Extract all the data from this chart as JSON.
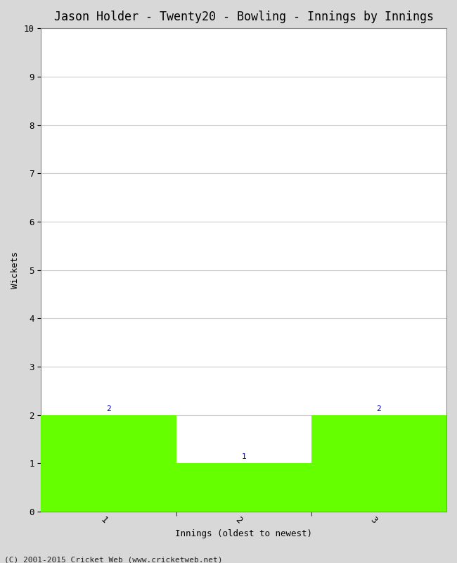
{
  "title": "Jason Holder - Twenty20 - Bowling - Innings by Innings",
  "xlabel": "Innings (oldest to newest)",
  "ylabel": "Wickets",
  "categories": [
    1,
    2,
    3
  ],
  "values": [
    2,
    1,
    2
  ],
  "bar_color": "#66ff00",
  "label_color": "#0000cc",
  "ylim": [
    0,
    10
  ],
  "yticks": [
    0,
    1,
    2,
    3,
    4,
    5,
    6,
    7,
    8,
    9,
    10
  ],
  "xtick_labels": [
    "1",
    "2",
    "3"
  ],
  "background_color": "#d8d8d8",
  "plot_bg_color": "#ffffff",
  "footer": "(C) 2001-2015 Cricket Web (www.cricketweb.net)",
  "title_fontsize": 12,
  "axis_label_fontsize": 9,
  "tick_fontsize": 9,
  "footer_fontsize": 8,
  "bar_label_fontsize": 8
}
